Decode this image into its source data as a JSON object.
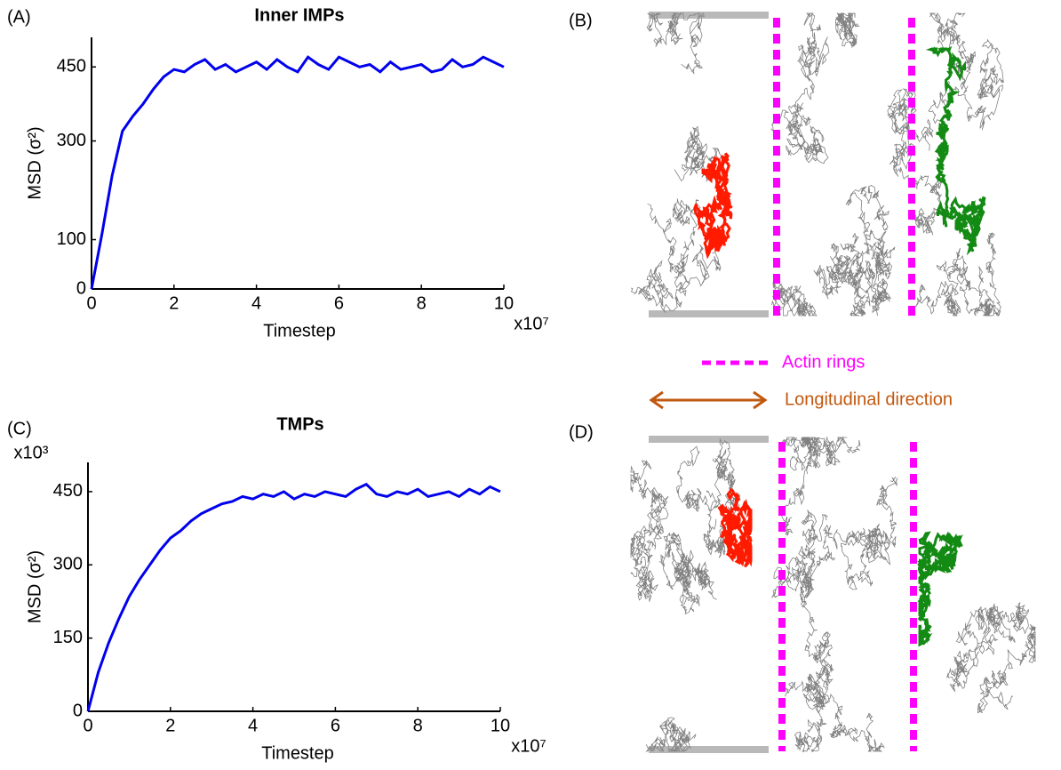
{
  "chart_data": [
    {
      "type": "line",
      "panel": "(A)",
      "title": "Inner IMPs",
      "xlabel": "Timestep",
      "ylabel": "MSD (σ²)",
      "x_multiplier": "x10⁷",
      "x": [
        0,
        0.25,
        0.5,
        0.75,
        1,
        1.25,
        1.5,
        1.75,
        2,
        2.25,
        2.5,
        2.75,
        3,
        3.25,
        3.5,
        3.75,
        4,
        4.25,
        4.5,
        4.75,
        5,
        5.25,
        5.5,
        5.75,
        6,
        6.25,
        6.5,
        6.75,
        7,
        7.25,
        7.5,
        7.75,
        8,
        8.25,
        8.5,
        8.75,
        9,
        9.25,
        9.5,
        9.75,
        10
      ],
      "series": [
        {
          "color": "#0000ee",
          "values": [
            0,
            110,
            230,
            320,
            350,
            375,
            405,
            430,
            445,
            440,
            455,
            465,
            445,
            455,
            440,
            450,
            460,
            445,
            465,
            450,
            440,
            470,
            455,
            445,
            470,
            460,
            450,
            455,
            440,
            460,
            445,
            450,
            455,
            440,
            445,
            465,
            450,
            455,
            470,
            460,
            450
          ]
        }
      ],
      "xlim": [
        0,
        10
      ],
      "xticks": [
        0,
        2,
        4,
        6,
        8,
        10
      ],
      "ylim": [
        0,
        510
      ],
      "yticks": [
        0,
        100,
        300,
        450
      ]
    },
    {
      "type": "line",
      "panel": "(C)",
      "title": "TMPs",
      "xlabel": "Timestep",
      "ylabel": "MSD (σ²)",
      "x_multiplier": "x10⁷",
      "y_multiplier": "x10³",
      "x": [
        0,
        0.25,
        0.5,
        0.75,
        1,
        1.25,
        1.5,
        1.75,
        2,
        2.25,
        2.5,
        2.75,
        3,
        3.25,
        3.5,
        3.75,
        4,
        4.25,
        4.5,
        4.75,
        5,
        5.25,
        5.5,
        5.75,
        6,
        6.25,
        6.5,
        6.75,
        7,
        7.25,
        7.5,
        7.75,
        8,
        8.25,
        8.5,
        8.75,
        9,
        9.25,
        9.5,
        9.75,
        10
      ],
      "series": [
        {
          "color": "#0000ee",
          "values": [
            0,
            80,
            140,
            190,
            235,
            270,
            300,
            330,
            355,
            370,
            390,
            405,
            415,
            425,
            430,
            440,
            435,
            445,
            440,
            450,
            435,
            445,
            440,
            450,
            445,
            440,
            455,
            465,
            445,
            440,
            450,
            445,
            455,
            440,
            445,
            450,
            440,
            455,
            445,
            460,
            450
          ]
        }
      ],
      "xlim": [
        0,
        10
      ],
      "xticks": [
        0,
        2,
        4,
        6,
        8,
        10
      ],
      "ylim": [
        0,
        510
      ],
      "yticks": [
        0,
        150,
        300,
        450
      ]
    }
  ],
  "panels": {
    "b": "(B)",
    "d": "(D)"
  },
  "legend": {
    "actin": "Actin rings",
    "direction": "Longitudinal direction"
  }
}
